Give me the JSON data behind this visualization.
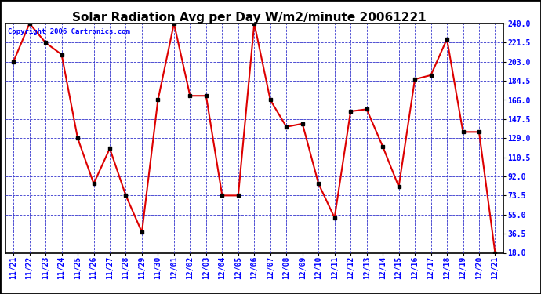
{
  "title": "Solar Radiation Avg per Day W/m2/minute 20061221",
  "copyright": "Copyright 2006 Cartronics.com",
  "labels": [
    "11/21",
    "11/22",
    "11/23",
    "11/24",
    "11/25",
    "11/26",
    "11/27",
    "11/28",
    "11/29",
    "11/30",
    "12/01",
    "12/02",
    "12/03",
    "12/04",
    "12/05",
    "12/06",
    "12/07",
    "12/08",
    "12/09",
    "12/10",
    "12/11",
    "12/12",
    "12/13",
    "12/14",
    "12/15",
    "12/16",
    "12/17",
    "12/18",
    "12/19",
    "12/20",
    "12/21"
  ],
  "values": [
    203.0,
    240.0,
    221.5,
    210.0,
    129.0,
    85.0,
    119.0,
    73.5,
    38.0,
    166.0,
    240.0,
    170.0,
    170.0,
    73.5,
    73.5,
    240.0,
    166.0,
    140.0,
    143.0,
    85.0,
    52.0,
    155.0,
    157.0,
    121.0,
    82.0,
    186.0,
    190.0,
    225.0,
    135.0,
    135.0,
    18.0
  ],
  "ylim": [
    18.0,
    240.0
  ],
  "yticks": [
    18.0,
    36.5,
    55.0,
    73.5,
    92.0,
    110.5,
    129.0,
    147.5,
    166.0,
    184.5,
    203.0,
    221.5,
    240.0
  ],
  "line_color": "#dd0000",
  "marker_color": "#000000",
  "bg_color": "#ffffff",
  "plot_bg_color": "#ffffff",
  "grid_color": "#3333cc",
  "outer_border_color": "#000000",
  "title_fontsize": 11,
  "tick_fontsize": 7,
  "copyright_fontsize": 6.5
}
